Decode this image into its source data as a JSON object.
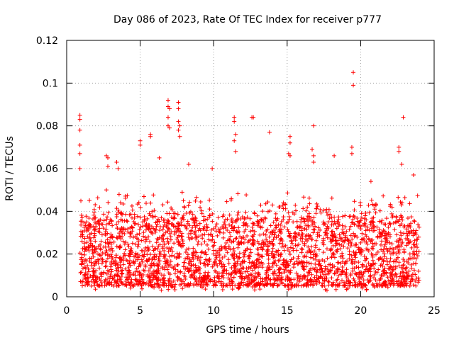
{
  "chart_data": {
    "type": "scatter",
    "title": "Day 086 of 2023, Rate Of TEC Index for receiver p777",
    "xlabel": "GPS time / hours",
    "ylabel": "ROTI / TECUs",
    "xlim": [
      0,
      25
    ],
    "ylim": [
      0,
      0.12
    ],
    "xticks": [
      0,
      5,
      10,
      15,
      20,
      25
    ],
    "xtick_labels": [
      "0",
      "5",
      "10",
      "15",
      "20",
      "25"
    ],
    "yticks": [
      0,
      0.02,
      0.04,
      0.06,
      0.08,
      0.1,
      0.12
    ],
    "ytick_labels": [
      "0",
      "0.02",
      "0.04",
      "0.06",
      "0.08",
      "0.1",
      "0.12"
    ],
    "grid": true,
    "marker": "+",
    "color": "#ff0000",
    "time_range_hours": [
      0.9,
      24.0
    ],
    "bulk_band": [
      0.005,
      0.035
    ],
    "series": [
      {
        "name": "ROTI",
        "notable_points": [
          {
            "x": 0.9,
            "y": 0.085
          },
          {
            "x": 0.9,
            "y": 0.083
          },
          {
            "x": 0.9,
            "y": 0.078
          },
          {
            "x": 0.9,
            "y": 0.071
          },
          {
            "x": 0.9,
            "y": 0.067
          },
          {
            "x": 0.9,
            "y": 0.06
          },
          {
            "x": 2.7,
            "y": 0.066
          },
          {
            "x": 2.8,
            "y": 0.065
          },
          {
            "x": 2.8,
            "y": 0.061
          },
          {
            "x": 2.7,
            "y": 0.05
          },
          {
            "x": 3.4,
            "y": 0.063
          },
          {
            "x": 3.5,
            "y": 0.06
          },
          {
            "x": 5.0,
            "y": 0.073
          },
          {
            "x": 5.0,
            "y": 0.071
          },
          {
            "x": 5.7,
            "y": 0.076
          },
          {
            "x": 5.7,
            "y": 0.075
          },
          {
            "x": 6.3,
            "y": 0.065
          },
          {
            "x": 6.9,
            "y": 0.092
          },
          {
            "x": 6.9,
            "y": 0.089
          },
          {
            "x": 7.0,
            "y": 0.088
          },
          {
            "x": 6.9,
            "y": 0.084
          },
          {
            "x": 6.9,
            "y": 0.08
          },
          {
            "x": 7.0,
            "y": 0.079
          },
          {
            "x": 7.6,
            "y": 0.091
          },
          {
            "x": 7.6,
            "y": 0.088
          },
          {
            "x": 7.6,
            "y": 0.082
          },
          {
            "x": 7.7,
            "y": 0.08
          },
          {
            "x": 7.6,
            "y": 0.078
          },
          {
            "x": 7.7,
            "y": 0.075
          },
          {
            "x": 8.3,
            "y": 0.062
          },
          {
            "x": 9.9,
            "y": 0.06
          },
          {
            "x": 11.4,
            "y": 0.084
          },
          {
            "x": 11.4,
            "y": 0.082
          },
          {
            "x": 11.5,
            "y": 0.076
          },
          {
            "x": 11.4,
            "y": 0.073
          },
          {
            "x": 11.5,
            "y": 0.068
          },
          {
            "x": 12.6,
            "y": 0.084
          },
          {
            "x": 12.7,
            "y": 0.084
          },
          {
            "x": 13.8,
            "y": 0.077
          },
          {
            "x": 15.2,
            "y": 0.075
          },
          {
            "x": 15.2,
            "y": 0.072
          },
          {
            "x": 15.1,
            "y": 0.067
          },
          {
            "x": 15.2,
            "y": 0.066
          },
          {
            "x": 16.8,
            "y": 0.08
          },
          {
            "x": 16.7,
            "y": 0.069
          },
          {
            "x": 16.8,
            "y": 0.066
          },
          {
            "x": 16.8,
            "y": 0.063
          },
          {
            "x": 18.2,
            "y": 0.066
          },
          {
            "x": 19.5,
            "y": 0.105
          },
          {
            "x": 19.5,
            "y": 0.099
          },
          {
            "x": 19.4,
            "y": 0.07
          },
          {
            "x": 19.4,
            "y": 0.067
          },
          {
            "x": 20.7,
            "y": 0.054
          },
          {
            "x": 22.6,
            "y": 0.07
          },
          {
            "x": 22.6,
            "y": 0.068
          },
          {
            "x": 22.8,
            "y": 0.062
          },
          {
            "x": 22.9,
            "y": 0.084
          },
          {
            "x": 23.6,
            "y": 0.057
          }
        ]
      }
    ]
  }
}
